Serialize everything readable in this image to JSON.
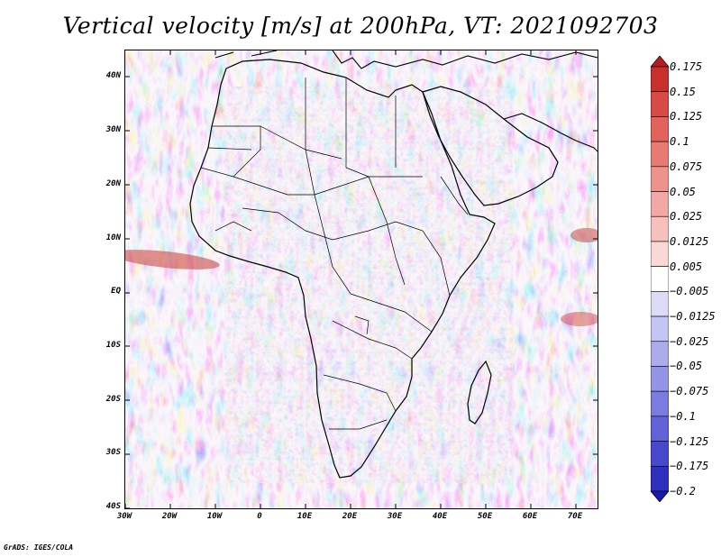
{
  "title": "Vertical velocity [m/s] at 200hPa, VT: 2021092703",
  "footer": "GrADS: IGES/COLA",
  "map": {
    "region": "Africa",
    "lat_labels": [
      "40N",
      "30N",
      "20N",
      "10N",
      "EQ",
      "10S",
      "20S",
      "30S",
      "40S"
    ],
    "lon_labels": [
      "30W",
      "20W",
      "10W",
      "0",
      "10E",
      "20E",
      "30E",
      "40E",
      "50E",
      "60E",
      "70E"
    ],
    "lat_range": [
      -40,
      45
    ],
    "lon_range": [
      -30,
      75
    ]
  },
  "colorbar": {
    "labels": [
      "0.175",
      "0.15",
      "0.125",
      "0.1",
      "0.075",
      "0.05",
      "0.025",
      "0.0125",
      "0.005",
      "−0.005",
      "−0.0125",
      "−0.025",
      "−0.05",
      "−0.075",
      "−0.1",
      "−0.125",
      "−0.175",
      "−0.2"
    ],
    "colors": [
      "#b41e1e",
      "#c8302e",
      "#d84a46",
      "#e2625c",
      "#e87a74",
      "#ee928c",
      "#f2a8a4",
      "#f6c0bc",
      "#fad8d6",
      "#ffffff",
      "#dcdcf8",
      "#c4c4f2",
      "#acacec",
      "#9494e6",
      "#7c7ce0",
      "#6262d8",
      "#4848cc",
      "#3030be",
      "#1a1aa8"
    ]
  },
  "colors": {
    "positive": "#e0544c",
    "negative": "#5c5cd8",
    "coast": "#000000"
  }
}
